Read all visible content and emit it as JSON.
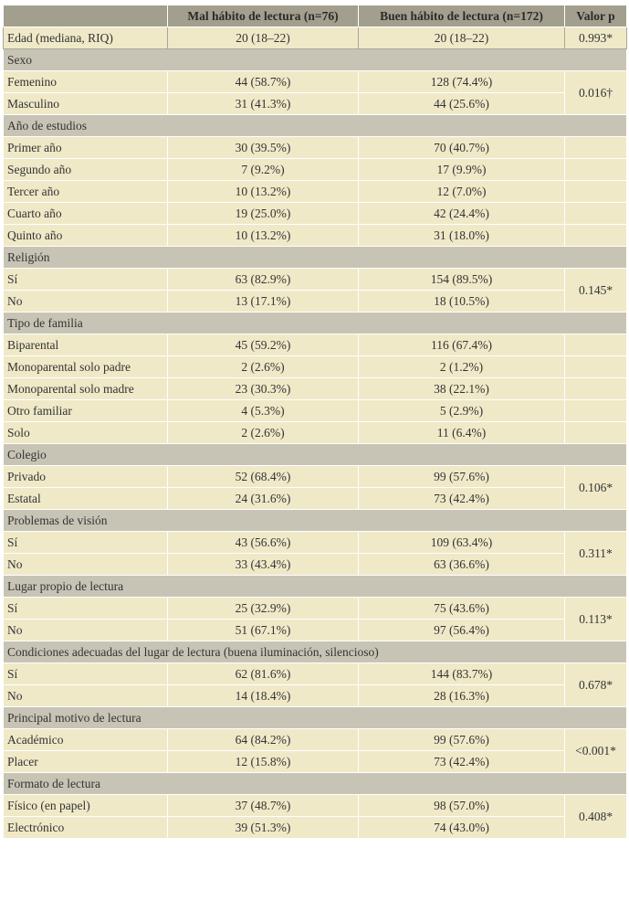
{
  "header": {
    "columns": [
      "Mal hábito de lectura (n=76)",
      "Buen hábito de lectura (n=172)",
      "Valor p"
    ]
  },
  "first_row": {
    "label": "Edad (mediana, RIQ)",
    "values": [
      "20 (18–22)",
      "20 (18–22)"
    ],
    "p": "0.993*"
  },
  "sections": [
    {
      "title": "Sexo",
      "p": "0.016†",
      "rows": [
        {
          "label": "Femenino",
          "values": [
            "44 (58.7%)",
            "128 (74.4%)"
          ]
        },
        {
          "label": "Masculino",
          "values": [
            "31 (41.3%)",
            "44 (25.6%)"
          ]
        }
      ]
    },
    {
      "title": "Año de estudios",
      "rows": [
        {
          "label": "Primer año",
          "values": [
            "30 (39.5%)",
            "70 (40.7%)"
          ]
        },
        {
          "label": "Segundo año",
          "values": [
            "7 (9.2%)",
            "17 (9.9%)"
          ]
        },
        {
          "label": "Tercer año",
          "values": [
            "10 (13.2%)",
            "12 (7.0%)"
          ]
        },
        {
          "label": "Cuarto año",
          "values": [
            "19 (25.0%)",
            "42 (24.4%)"
          ]
        },
        {
          "label": "Quinto año",
          "values": [
            "10 (13.2%)",
            "31 (18.0%)"
          ]
        }
      ]
    },
    {
      "title": "Religión",
      "p": "0.145*",
      "rows": [
        {
          "label": "Sí",
          "values": [
            "63 (82.9%)",
            "154 (89.5%)"
          ]
        },
        {
          "label": "No",
          "values": [
            "13 (17.1%)",
            "18 (10.5%)"
          ]
        }
      ]
    },
    {
      "title": "Tipo de familia",
      "rows": [
        {
          "label": "Biparental",
          "values": [
            "45 (59.2%)",
            "116 (67.4%)"
          ]
        },
        {
          "label": "Monoparental solo padre",
          "values": [
            "2 (2.6%)",
            "2 (1.2%)"
          ]
        },
        {
          "label": "Monoparental solo madre",
          "values": [
            "23 (30.3%)",
            "38 (22.1%)"
          ]
        },
        {
          "label": "Otro familiar",
          "values": [
            "4 (5.3%)",
            "5 (2.9%)"
          ]
        },
        {
          "label": "Solo",
          "values": [
            "2 (2.6%)",
            "11 (6.4%)"
          ]
        }
      ]
    },
    {
      "title": "Colegio",
      "p": "0.106*",
      "rows": [
        {
          "label": "Privado",
          "values": [
            "52 (68.4%)",
            "99 (57.6%)"
          ]
        },
        {
          "label": "Estatal",
          "values": [
            "24 (31.6%)",
            "73 (42.4%)"
          ]
        }
      ]
    },
    {
      "title": "Problemas de visión",
      "p": "0.311*",
      "rows": [
        {
          "label": "Sí",
          "values": [
            "43 (56.6%)",
            "109 (63.4%)"
          ]
        },
        {
          "label": "No",
          "values": [
            "33 (43.4%)",
            "63 (36.6%)"
          ]
        }
      ]
    },
    {
      "title": "Lugar propio de lectura",
      "p": "0.113*",
      "rows": [
        {
          "label": "Sí",
          "values": [
            "25 (32.9%)",
            "75 (43.6%)"
          ]
        },
        {
          "label": "No",
          "values": [
            "51 (67.1%)",
            "97 (56.4%)"
          ]
        }
      ]
    },
    {
      "title": "Condiciones adecuadas del lugar de lectura (buena iluminación, silencioso)",
      "p": "0.678*",
      "rows": [
        {
          "label": "Sí",
          "values": [
            "62 (81.6%)",
            "144 (83.7%)"
          ]
        },
        {
          "label": "No",
          "values": [
            "14 (18.4%)",
            "28 (16.3%)"
          ]
        }
      ]
    },
    {
      "title": "Principal motivo de lectura",
      "p": "<0.001*",
      "rows": [
        {
          "label": "Académico",
          "values": [
            "64 (84.2%)",
            "99 (57.6%)"
          ]
        },
        {
          "label": "Placer",
          "values": [
            "12 (15.8%)",
            "73 (42.4%)"
          ]
        }
      ]
    },
    {
      "title": "Formato de lectura",
      "p": "0.408*",
      "rows": [
        {
          "label": "Físico (en papel)",
          "values": [
            "37 (48.7%)",
            "98 (57.0%)"
          ]
        },
        {
          "label": "Electrónico",
          "values": [
            "39 (51.3%)",
            "74 (43.0%)"
          ]
        }
      ]
    }
  ]
}
